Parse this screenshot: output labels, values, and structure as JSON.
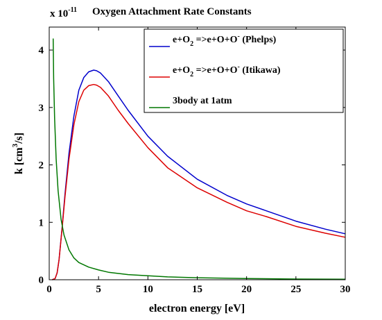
{
  "chart_data": {
    "type": "line",
    "title": "Oxygen Attachment Rate Constants",
    "exponent_label": "x 10",
    "exponent_power": "-11",
    "xlabel": "electron energy [eV]",
    "ylabel": {
      "prefix": "k [cm",
      "sup": "3",
      "suffix": "/s]"
    },
    "xlim": [
      0,
      30
    ],
    "ylim": [
      0,
      4.4
    ],
    "x_ticks": [
      0,
      5,
      10,
      15,
      20,
      25,
      30
    ],
    "y_ticks": [
      0,
      1,
      2,
      3,
      4
    ],
    "x_tick_labels": [
      "0",
      "5",
      "10",
      "15",
      "20",
      "25",
      "30"
    ],
    "y_tick_labels": [
      "0",
      "1",
      "2",
      "3",
      "4"
    ],
    "legend_position": "top-right",
    "series": [
      {
        "name": "e+O2=>e+O+O- (Phelps)",
        "color": "#0000cc",
        "legend": {
          "a": "e+O",
          "sub": "2",
          "b": " =>e+O+O",
          "sup": "-",
          "c": " (Phelps)"
        },
        "x": [
          0.3,
          0.6,
          0.8,
          1.0,
          1.3,
          1.6,
          2.0,
          2.5,
          3.0,
          3.5,
          4.0,
          4.5,
          4.8,
          5.2,
          6.0,
          7.0,
          8.0,
          10,
          12,
          15,
          18,
          20,
          22,
          25,
          28,
          30
        ],
        "y": [
          0,
          0.02,
          0.12,
          0.35,
          0.9,
          1.5,
          2.2,
          2.85,
          3.3,
          3.52,
          3.62,
          3.65,
          3.64,
          3.6,
          3.45,
          3.2,
          2.95,
          2.5,
          2.15,
          1.75,
          1.47,
          1.32,
          1.2,
          1.02,
          0.88,
          0.8
        ]
      },
      {
        "name": "e+O2=>e+O+O- (Itikawa)",
        "color": "#dd0000",
        "legend": {
          "a": "e+O",
          "sub": "2",
          "b": " =>e+O+O",
          "sup": "-",
          "c": " (Itikawa)"
        },
        "x": [
          0.3,
          0.6,
          0.8,
          1.0,
          1.3,
          1.6,
          2.0,
          2.5,
          3.0,
          3.5,
          4.0,
          4.5,
          4.8,
          5.2,
          6.0,
          7.0,
          8.0,
          10,
          12,
          15,
          18,
          20,
          22,
          25,
          28,
          30
        ],
        "y": [
          0,
          0.02,
          0.12,
          0.35,
          0.88,
          1.45,
          2.1,
          2.7,
          3.1,
          3.3,
          3.38,
          3.4,
          3.39,
          3.35,
          3.2,
          2.95,
          2.72,
          2.3,
          1.95,
          1.6,
          1.35,
          1.2,
          1.1,
          0.93,
          0.81,
          0.74
        ]
      },
      {
        "name": "3body at 1atm",
        "color": "#007700",
        "legend": {
          "a": "3body at 1atm",
          "sub": "",
          "b": "",
          "sup": "",
          "c": ""
        },
        "x": [
          0.4,
          0.45,
          0.55,
          0.7,
          0.9,
          1.2,
          1.5,
          2.0,
          2.5,
          3.0,
          4.0,
          5.0,
          6.0,
          8.0,
          10,
          12,
          15,
          20,
          25,
          30
        ],
        "y": [
          4.2,
          3.5,
          2.8,
          2.1,
          1.55,
          1.05,
          0.78,
          0.52,
          0.38,
          0.3,
          0.22,
          0.17,
          0.13,
          0.09,
          0.07,
          0.05,
          0.035,
          0.02,
          0.012,
          0.008
        ]
      }
    ]
  }
}
